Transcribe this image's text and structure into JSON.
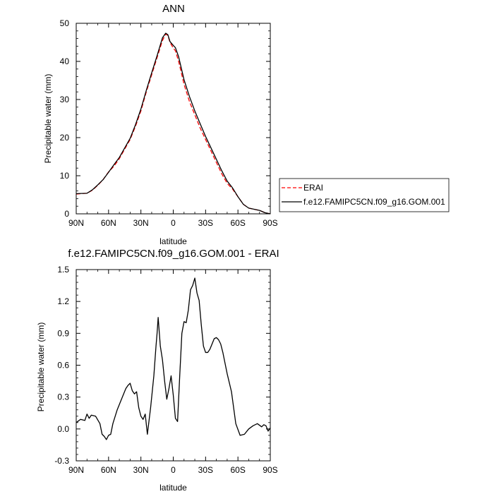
{
  "chart_data": [
    {
      "type": "line",
      "title": "ANN",
      "xlabel": "latitude",
      "ylabel": "Precipitable water (mm)",
      "xlim": [
        90,
        -90
      ],
      "ylim": [
        0,
        50
      ],
      "xticks": [
        90,
        60,
        30,
        0,
        -30,
        -60,
        -90
      ],
      "xtick_labels": [
        "90N",
        "60N",
        "30N",
        "0",
        "30S",
        "60S",
        "90S"
      ],
      "yticks": [
        0,
        10,
        20,
        30,
        40,
        50
      ],
      "ytick_labels": [
        "0",
        "10",
        "20",
        "30",
        "40",
        "50"
      ],
      "grid": false,
      "legend": "right",
      "series": [
        {
          "name": "ERAI",
          "color": "#ff0000",
          "dashed": true,
          "x": [
            90,
            80,
            75,
            70,
            65,
            60,
            55,
            50,
            45,
            40,
            35,
            30,
            25,
            20,
            15,
            10,
            7,
            5,
            3,
            0,
            -2,
            -5,
            -10,
            -15,
            -20,
            -25,
            -30,
            -35,
            -40,
            -45,
            -50,
            -55,
            -60,
            -65,
            -70,
            -75,
            -80,
            -85,
            -90
          ],
          "y": [
            5.2,
            5.4,
            6.2,
            7.5,
            9.0,
            11.0,
            12.5,
            14.5,
            17.0,
            19.5,
            23.0,
            27.0,
            32.0,
            36.5,
            41.0,
            45.5,
            47.2,
            46.8,
            45.0,
            43.5,
            42.8,
            40.0,
            34.0,
            29.5,
            26.0,
            22.5,
            19.5,
            16.5,
            13.5,
            10.5,
            8.0,
            6.5,
            4.5,
            2.5,
            1.5,
            1.2,
            0.9,
            0.3,
            0.0
          ]
        },
        {
          "name": "f.e12.FAMIPC5CN.f09_g16.GOM.001",
          "color": "#000000",
          "dashed": false,
          "x": [
            90,
            80,
            75,
            70,
            65,
            60,
            55,
            50,
            45,
            40,
            35,
            30,
            25,
            20,
            15,
            10,
            7,
            5,
            3,
            0,
            -2,
            -5,
            -10,
            -15,
            -20,
            -25,
            -30,
            -35,
            -40,
            -45,
            -50,
            -55,
            -60,
            -65,
            -70,
            -75,
            -80,
            -85,
            -90
          ],
          "y": [
            5.3,
            5.4,
            6.3,
            7.6,
            9.0,
            10.9,
            12.9,
            14.8,
            17.3,
            19.8,
            23.4,
            27.5,
            32.4,
            37.0,
            41.5,
            46.2,
            47.4,
            47.0,
            45.2,
            44.2,
            43.6,
            41.2,
            35.2,
            30.8,
            27.0,
            23.6,
            20.3,
            17.3,
            14.3,
            11.3,
            8.6,
            6.8,
            4.5,
            2.5,
            1.5,
            1.2,
            0.9,
            0.3,
            0.0
          ]
        }
      ]
    },
    {
      "type": "line",
      "title": "f.e12.FAMIPC5CN.f09_g16.GOM.001 - ERAI",
      "xlabel": "latitude",
      "ylabel": "Precipitable water (mm)",
      "xlim": [
        90,
        -90
      ],
      "ylim": [
        -0.3,
        1.5
      ],
      "xticks": [
        90,
        60,
        30,
        0,
        -30,
        -60,
        -90
      ],
      "xtick_labels": [
        "90N",
        "60N",
        "30N",
        "0",
        "30S",
        "60S",
        "90S"
      ],
      "yticks": [
        -0.3,
        0.0,
        0.3,
        0.6,
        0.9,
        1.2,
        1.5
      ],
      "ytick_labels": [
        "-0.3",
        "0.0",
        "0.3",
        "0.6",
        "0.9",
        "1.2",
        "1.5"
      ],
      "grid": false,
      "series": [
        {
          "color": "#000000",
          "dashed": false,
          "x": [
            90,
            86,
            82,
            80,
            78,
            76,
            72,
            68,
            66,
            64,
            62,
            60,
            58,
            56,
            52,
            48,
            44,
            42,
            40,
            38,
            36,
            34,
            32,
            30,
            28,
            26,
            24,
            21,
            18,
            16,
            15,
            14,
            12,
            10,
            8,
            6,
            4,
            2,
            0,
            -2,
            -4,
            -6,
            -8,
            -10,
            -12,
            -14,
            -16,
            -18,
            -20,
            -22,
            -24,
            -26,
            -28,
            -30,
            -32,
            -34,
            -36,
            -38,
            -40,
            -42,
            -44,
            -46,
            -48,
            -50,
            -54,
            -58,
            -62,
            -66,
            -70,
            -74,
            -78,
            -82,
            -84,
            -86,
            -88,
            -90
          ],
          "y": [
            0.06,
            0.09,
            0.08,
            0.14,
            0.1,
            0.13,
            0.12,
            0.05,
            -0.05,
            -0.07,
            -0.1,
            -0.06,
            -0.05,
            0.05,
            0.18,
            0.28,
            0.38,
            0.41,
            0.43,
            0.36,
            0.33,
            0.35,
            0.2,
            0.12,
            0.09,
            0.14,
            -0.05,
            0.2,
            0.5,
            0.78,
            0.9,
            1.05,
            0.78,
            0.65,
            0.45,
            0.28,
            0.38,
            0.5,
            0.32,
            0.1,
            0.07,
            0.5,
            0.9,
            1.01,
            1.0,
            1.12,
            1.31,
            1.35,
            1.42,
            1.28,
            1.21,
            0.98,
            0.78,
            0.72,
            0.72,
            0.75,
            0.8,
            0.85,
            0.86,
            0.84,
            0.8,
            0.72,
            0.62,
            0.52,
            0.35,
            0.05,
            -0.06,
            -0.05,
            0.0,
            0.03,
            0.05,
            0.02,
            0.04,
            0.03,
            -0.02,
            0.01
          ]
        }
      ]
    }
  ]
}
